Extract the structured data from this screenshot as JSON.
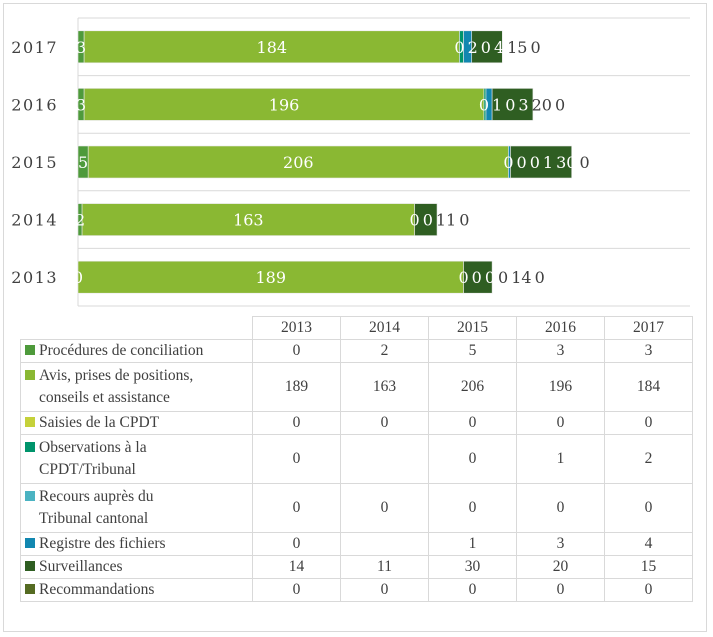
{
  "chart_data": {
    "type": "bar",
    "orientation": "horizontal",
    "stacked": true,
    "categories": [
      "2013",
      "2014",
      "2015",
      "2016",
      "2017"
    ],
    "xlim": [
      0,
      300
    ],
    "grid": true,
    "legend": "data-table-below",
    "series": [
      {
        "name": "Procédures de conciliation",
        "color": "#4e9a3b",
        "values": [
          0,
          2,
          5,
          3,
          3
        ]
      },
      {
        "name": "Avis, prises de positions, conseils et assistance",
        "color": "#8ab833",
        "values": [
          189,
          163,
          206,
          196,
          184
        ]
      },
      {
        "name": "Saisies de la CPDT",
        "color": "#c5d13a",
        "values": [
          0,
          0,
          0,
          0,
          0
        ]
      },
      {
        "name": "Observations à la CPDT/Tribunal",
        "color": "#00946b",
        "values": [
          0,
          null,
          0,
          1,
          2
        ]
      },
      {
        "name": "Recours auprès du Tribunal cantonal",
        "color": "#4bb3c2",
        "values": [
          0,
          0,
          0,
          0,
          0
        ]
      },
      {
        "name": "Registre des fichiers",
        "color": "#1287b0",
        "values": [
          0,
          null,
          1,
          3,
          4
        ]
      },
      {
        "name": "Surveillances",
        "color": "#2f5e22",
        "values": [
          14,
          11,
          30,
          20,
          15
        ]
      },
      {
        "name": "Recommandations",
        "color": "#556b22",
        "values": [
          0,
          0,
          0,
          0,
          0
        ]
      }
    ]
  }
}
